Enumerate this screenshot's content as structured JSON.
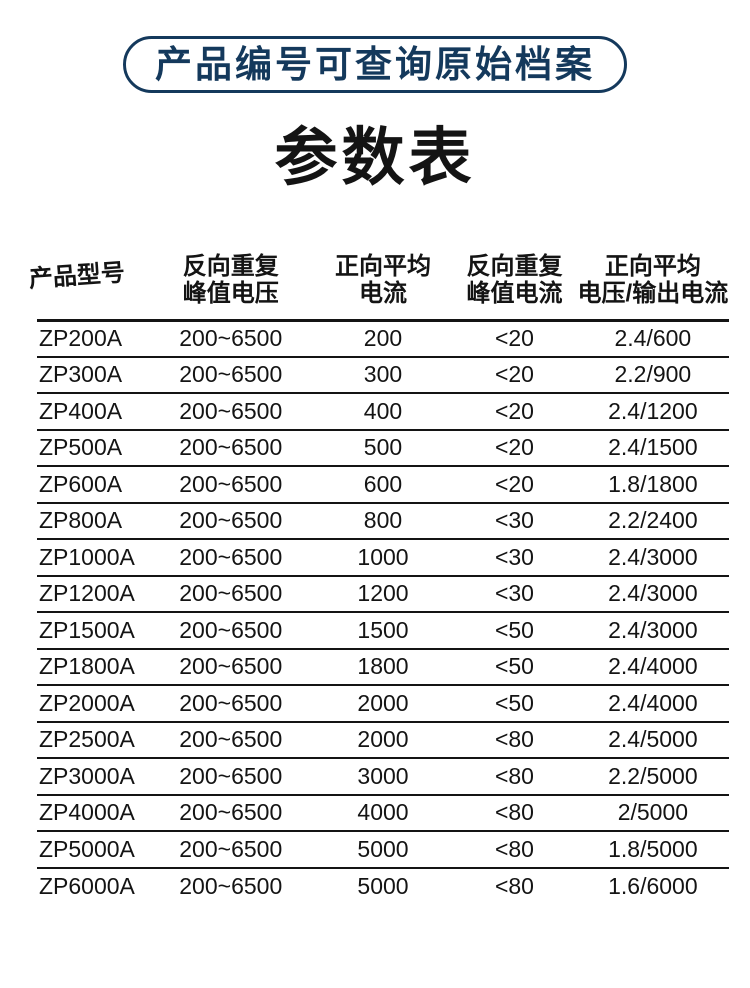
{
  "badge": {
    "label": "产品编号可查询原始档案"
  },
  "title": "参数表",
  "table": {
    "headers": [
      {
        "line1": "产品型号",
        "line2": ""
      },
      {
        "line1": "反向重复",
        "line2": "峰值电压"
      },
      {
        "line1": "正向平均",
        "line2": "电流"
      },
      {
        "line1": "反向重复",
        "line2": "峰值电流"
      },
      {
        "line1": "正向平均",
        "line2": "电压/输出电流"
      }
    ],
    "rows": [
      [
        "ZP200A",
        "200~6500",
        "200",
        "<20",
        "2.4/600"
      ],
      [
        "ZP300A",
        "200~6500",
        "300",
        "<20",
        "2.2/900"
      ],
      [
        "ZP400A",
        "200~6500",
        "400",
        "<20",
        "2.4/1200"
      ],
      [
        "ZP500A",
        "200~6500",
        "500",
        "<20",
        "2.4/1500"
      ],
      [
        "ZP600A",
        "200~6500",
        "600",
        "<20",
        "1.8/1800"
      ],
      [
        "ZP800A",
        "200~6500",
        "800",
        "<30",
        "2.2/2400"
      ],
      [
        "ZP1000A",
        "200~6500",
        "1000",
        "<30",
        "2.4/3000"
      ],
      [
        "ZP1200A",
        "200~6500",
        "1200",
        "<30",
        "2.4/3000"
      ],
      [
        "ZP1500A",
        "200~6500",
        "1500",
        "<50",
        "2.4/3000"
      ],
      [
        "ZP1800A",
        "200~6500",
        "1800",
        "<50",
        "2.4/4000"
      ],
      [
        "ZP2000A",
        "200~6500",
        "2000",
        "<50",
        "2.4/4000"
      ],
      [
        "ZP2500A",
        "200~6500",
        "2000",
        "<80",
        "2.4/5000"
      ],
      [
        "ZP3000A",
        "200~6500",
        "3000",
        "<80",
        "2.2/5000"
      ],
      [
        "ZP4000A",
        "200~6500",
        "4000",
        "<80",
        "2/5000"
      ],
      [
        "ZP5000A",
        "200~6500",
        "5000",
        "<80",
        "1.8/5000"
      ],
      [
        "ZP6000A",
        "200~6500",
        "5000",
        "<80",
        "1.6/6000"
      ]
    ]
  },
  "colors": {
    "accent_navy": "#14395c",
    "text_black": "#141414",
    "line_black": "#141414",
    "background": "#ffffff"
  }
}
